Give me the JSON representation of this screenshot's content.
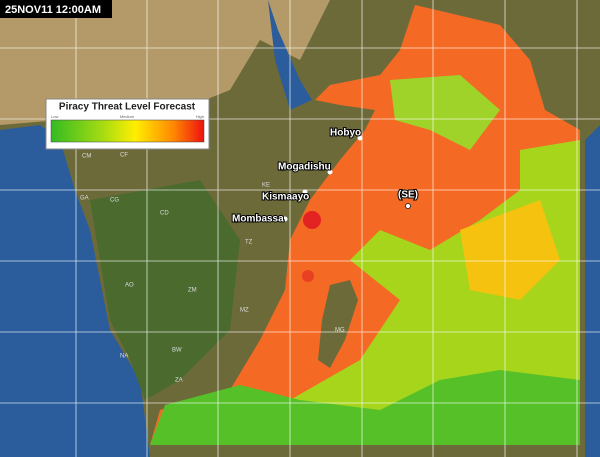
{
  "timestamp": "25NOV11 12:00AM",
  "legend": {
    "title": "Piracy Threat Level Forecast",
    "labels": [
      "Low",
      "Medium",
      "High"
    ]
  },
  "places": [
    "Hobyo",
    "Mogadishu",
    "Kismaayo",
    "Mombassa",
    "(SE)"
  ],
  "country_codes": [
    "CM",
    "CF",
    "GA",
    "CG",
    "CD",
    "AO",
    "ZM",
    "ZA",
    "MZ",
    "MG",
    "NA",
    "BW",
    "TZ",
    "KE"
  ]
}
